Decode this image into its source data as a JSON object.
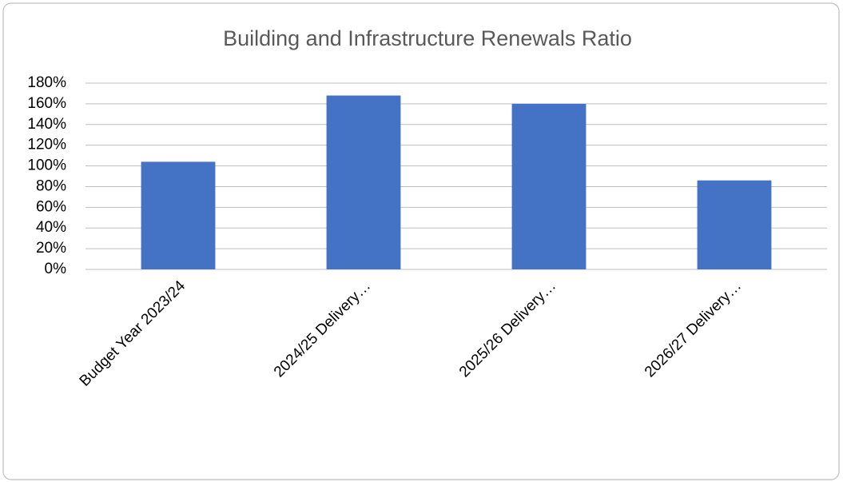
{
  "chart_data": {
    "type": "bar",
    "title": "Building and Infrastructure Renewals Ratio",
    "categories": [
      "Budget Year 2023/24",
      "2024/25 Delivery…",
      "2025/26 Delivery…",
      "2026/27 Delivery…"
    ],
    "values": [
      104,
      168,
      160,
      86
    ],
    "color": "#4472c4",
    "ylim": [
      0,
      180
    ],
    "yticks": [
      {
        "value": 0,
        "label": "0%"
      },
      {
        "value": 20,
        "label": "20%"
      },
      {
        "value": 40,
        "label": "40%"
      },
      {
        "value": 60,
        "label": "60%"
      },
      {
        "value": 80,
        "label": "80%"
      },
      {
        "value": 100,
        "label": "100%"
      },
      {
        "value": 120,
        "label": "120%"
      },
      {
        "value": 140,
        "label": "140%"
      },
      {
        "value": 160,
        "label": "160%"
      },
      {
        "value": 180,
        "label": "180%"
      }
    ],
    "grid": true
  }
}
